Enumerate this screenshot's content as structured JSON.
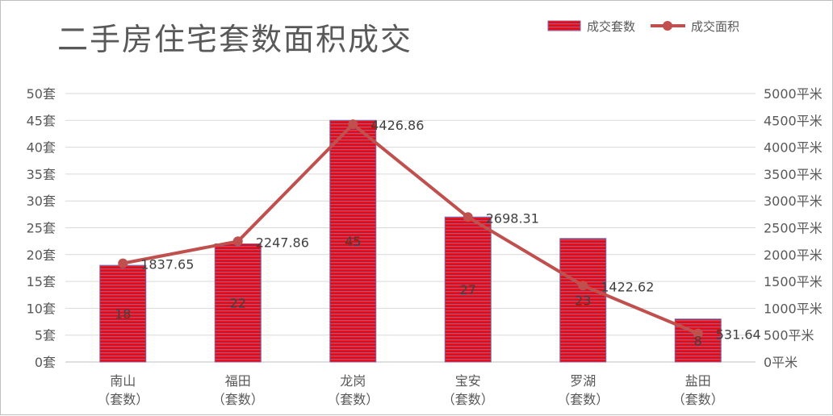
{
  "chart_data": {
    "type": "bar",
    "title": "二手房住宅套数面积成交",
    "categories": [
      "南山",
      "福田",
      "龙岗",
      "宝安",
      "罗湖",
      "盐田"
    ],
    "category_sublabel": "（套数）",
    "series": [
      {
        "name": "成交套数",
        "type": "bar",
        "axis": "left",
        "values": [
          18,
          22,
          45,
          27,
          23,
          8
        ],
        "labels": [
          "18",
          "22",
          "45",
          "27",
          "23",
          "8"
        ],
        "color": "#ff0000",
        "stripe_color": "#8064a2"
      },
      {
        "name": "成交面积",
        "type": "line",
        "axis": "right",
        "values": [
          1837.65,
          2247.86,
          4426.86,
          2698.31,
          1422.62,
          531.64
        ],
        "labels": [
          "1837.65",
          "2247.86",
          "4426.86",
          "2698.31",
          "1422.62",
          "531.64"
        ],
        "color": "#c0504d"
      }
    ],
    "y_left": {
      "min": 0,
      "max": 50,
      "step": 5,
      "tick_labels": [
        "0套",
        "5套",
        "10套",
        "15套",
        "20套",
        "25套",
        "30套",
        "35套",
        "40套",
        "45套",
        "50套"
      ]
    },
    "y_right": {
      "min": 0,
      "max": 5000,
      "step": 500,
      "tick_labels": [
        "0平米",
        "500平米",
        "1000平米",
        "1500平米",
        "2000平米",
        "2500平米",
        "3000平米",
        "3500平米",
        "4000平米",
        "4500平米",
        "5000平米"
      ]
    },
    "grid": true,
    "legend": "top-right"
  }
}
